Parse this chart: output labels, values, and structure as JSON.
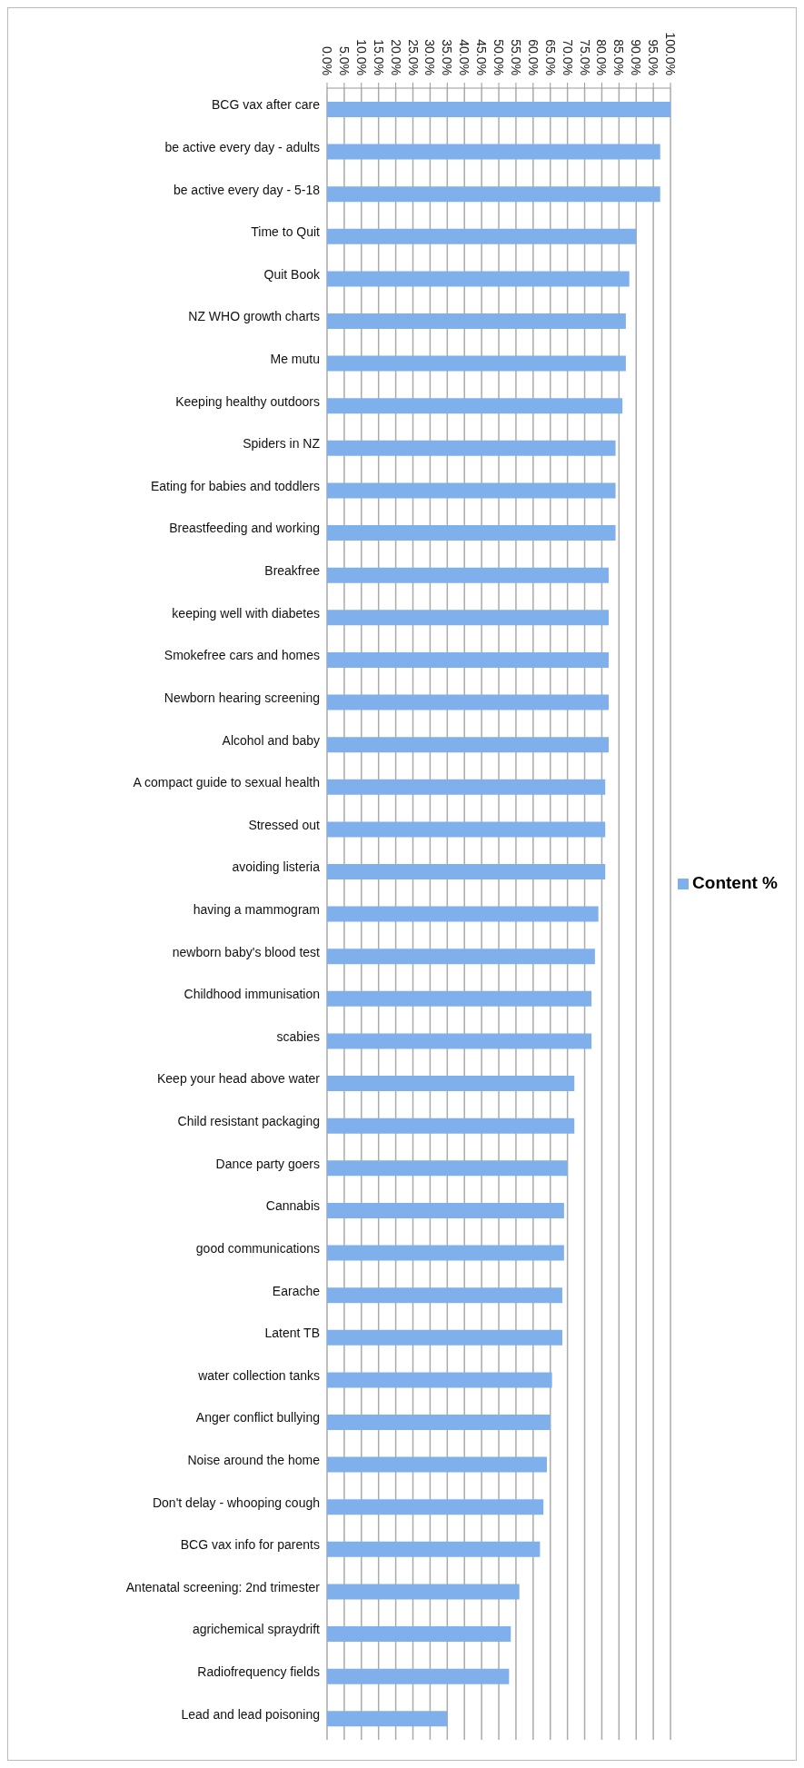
{
  "chart_data": {
    "type": "bar",
    "orientation": "horizontal",
    "categories": [
      "BCG vax after care",
      "be active every day - adults",
      "be active every day - 5-18",
      "Time to Quit",
      "Quit Book",
      "NZ WHO growth charts",
      "Me mutu",
      "Keeping healthy outdoors",
      "Spiders in NZ",
      "Eating for babies and toddlers",
      "Breastfeeding and working",
      "Breakfree",
      "keeping well with diabetes",
      "Smokefree cars and homes",
      "Newborn hearing screening",
      "Alcohol and baby",
      "A compact guide to sexual health",
      "Stressed out",
      "avoiding listeria",
      "having a mammogram",
      "newborn baby's blood test",
      "Childhood immunisation",
      "scabies",
      "Keep your head above water",
      "Child resistant packaging",
      "Dance party goers",
      "Cannabis",
      "good communications",
      "Earache",
      "Latent TB",
      "water collection tanks",
      "Anger conflict bullying",
      "Noise around the home",
      "Don't delay - whooping cough",
      "BCG vax info for parents",
      "Antenatal screening: 2nd trimester",
      "agrichemical spraydrift",
      "Radiofrequency fields",
      "Lead and lead poisoning"
    ],
    "series": [
      {
        "name": "Content %",
        "color": "#7fb0ec",
        "values": [
          100,
          97,
          97,
          90,
          88,
          87,
          87,
          86,
          84,
          84,
          84,
          82,
          82,
          82,
          82,
          82,
          81,
          81,
          81,
          79,
          78,
          77,
          77,
          72,
          72,
          70,
          69,
          69,
          68.5,
          68.5,
          65.5,
          65,
          64,
          63,
          62,
          56,
          53.5,
          53,
          35
        ]
      }
    ],
    "xlim": [
      0,
      100
    ],
    "xticks": [
      {
        "value": 0,
        "label": "0.0%"
      },
      {
        "value": 5,
        "label": "5.0%"
      },
      {
        "value": 10,
        "label": "10.0%"
      },
      {
        "value": 15,
        "label": "15.0%"
      },
      {
        "value": 20,
        "label": "20.0%"
      },
      {
        "value": 25,
        "label": "25.0%"
      },
      {
        "value": 30,
        "label": "30.0%"
      },
      {
        "value": 35,
        "label": "35.0%"
      },
      {
        "value": 40,
        "label": "40.0%"
      },
      {
        "value": 45,
        "label": "45.0%"
      },
      {
        "value": 50,
        "label": "50.0%"
      },
      {
        "value": 55,
        "label": "55.0%"
      },
      {
        "value": 60,
        "label": "60.0%"
      },
      {
        "value": 65,
        "label": "65.0%"
      },
      {
        "value": 70,
        "label": "70.0%"
      },
      {
        "value": 75,
        "label": "75.0%"
      },
      {
        "value": 80,
        "label": "80.0%"
      },
      {
        "value": 85,
        "label": "85.0%"
      },
      {
        "value": 90,
        "label": "90.0%"
      },
      {
        "value": 95,
        "label": "95.0%"
      },
      {
        "value": 100,
        "label": "100.0%"
      }
    ],
    "grid": "x",
    "legend": "right"
  }
}
